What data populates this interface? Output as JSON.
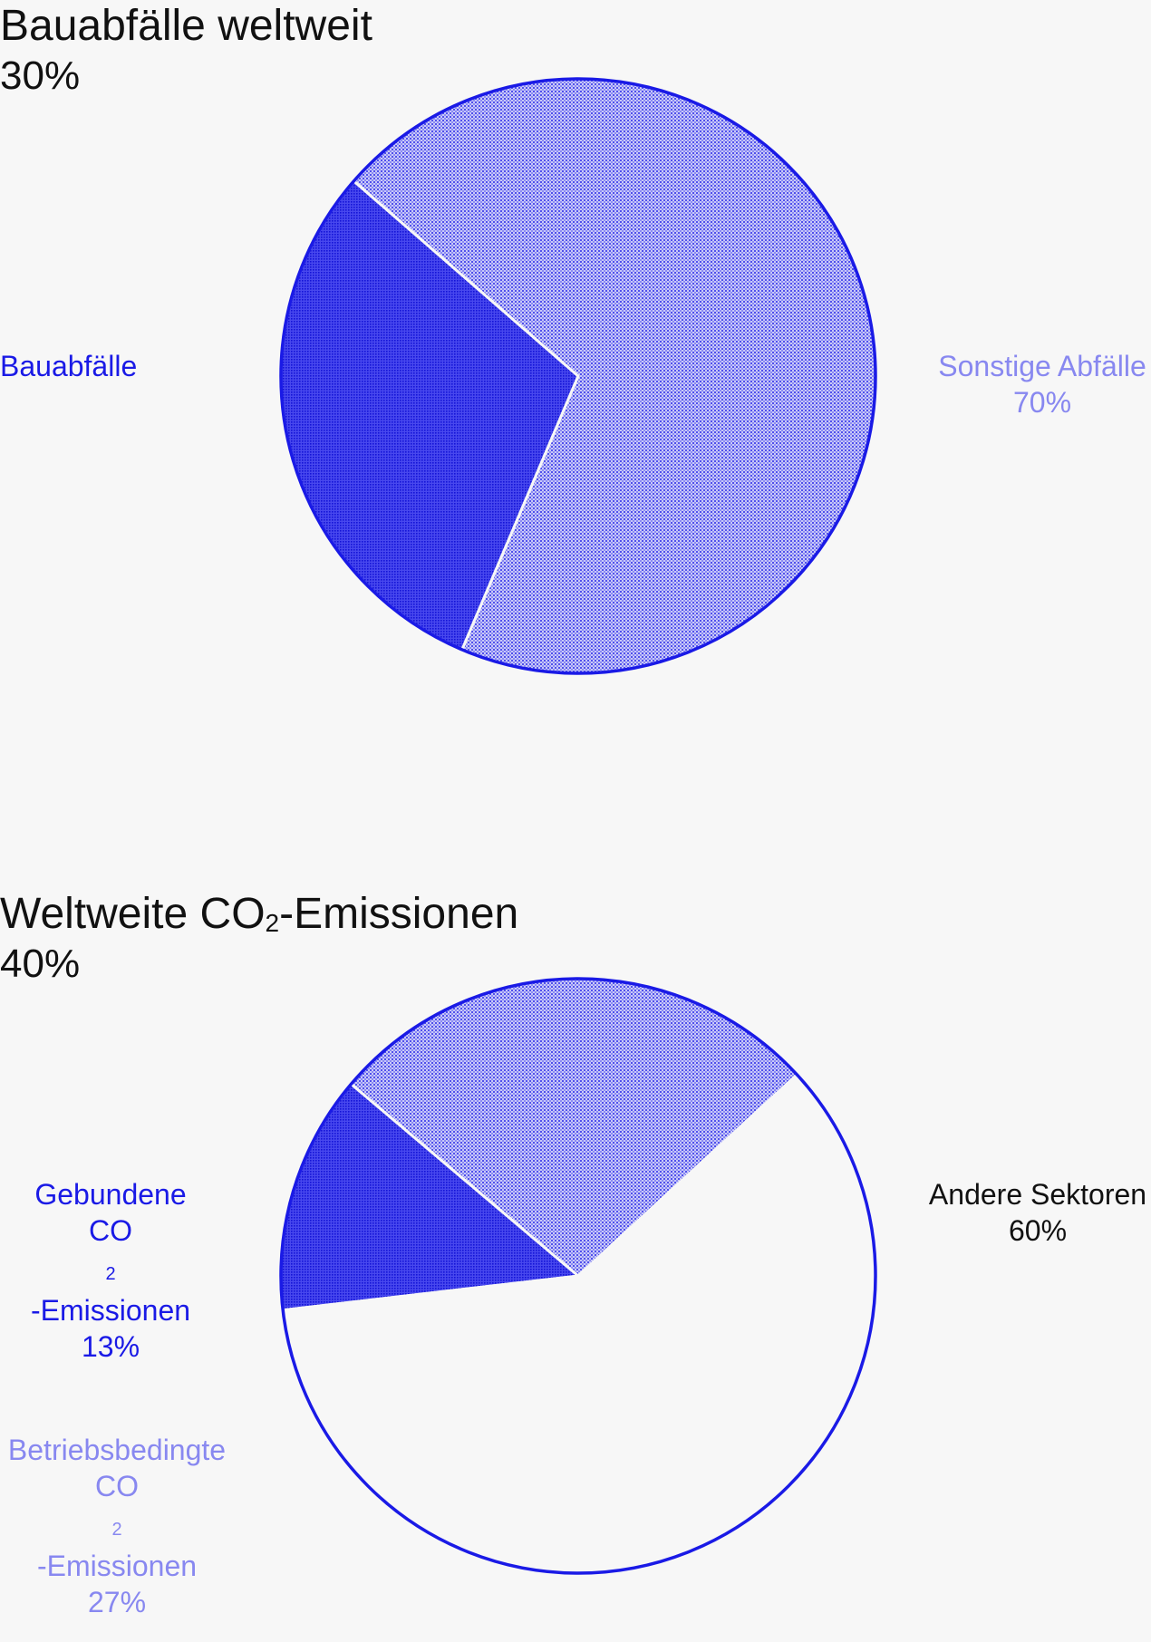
{
  "chart_data": [
    {
      "type": "pie",
      "title": "Bauabfälle weltweit",
      "headline_value": "30%",
      "slices": [
        {
          "label": "Bauabfälle",
          "value": 30,
          "value_label": "",
          "color": "#1a1ae6"
        },
        {
          "label": "Sonstige Abfälle",
          "value": 70,
          "value_label": "70%",
          "color": "#7f7ff0"
        }
      ]
    },
    {
      "type": "pie",
      "title_prefix": "Weltweite CO",
      "title_suffix": "-Emissionen",
      "title_subscript": "2",
      "headline_value": "40%",
      "slices": [
        {
          "label_line1": "Gebundene",
          "label_line2_prefix": "CO",
          "label_line2_suffix": "-Emissionen",
          "value": 13,
          "value_label": "13%",
          "color": "#1a1ae6"
        },
        {
          "label_line1": "Betriebsbedingte",
          "label_line2_prefix": "CO",
          "label_line2_suffix": "-Emissionen",
          "value": 27,
          "value_label": "27%",
          "color": "#7f7ff0"
        },
        {
          "label_line1": "Andere Sektoren",
          "value": 60,
          "value_label": "60%",
          "color": "#111111"
        }
      ]
    }
  ],
  "subscript_2": "2",
  "colors": {
    "accent": "#1a1ae6",
    "light": "#7f7ff0",
    "text": "#111111",
    "background": "#f7f7f7"
  }
}
